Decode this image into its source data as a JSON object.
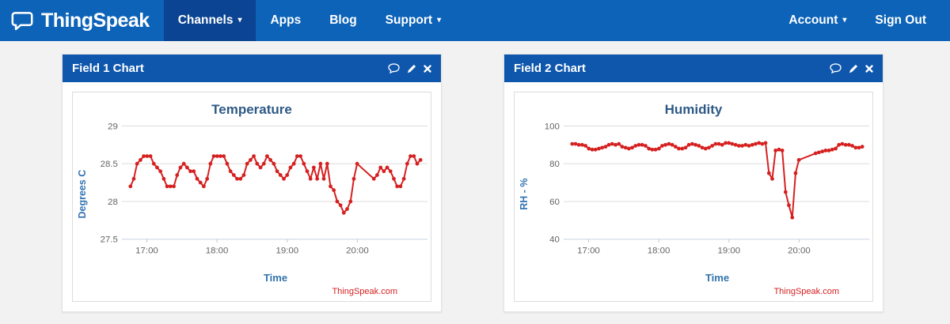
{
  "navbar": {
    "brand": "ThingSpeak",
    "items": [
      {
        "label": "Channels",
        "caret": true,
        "active": true
      },
      {
        "label": "Apps",
        "caret": false,
        "active": false
      },
      {
        "label": "Blog",
        "caret": false,
        "active": false
      },
      {
        "label": "Support",
        "caret": true,
        "active": false
      }
    ],
    "right_items": [
      {
        "label": "Account",
        "caret": true
      },
      {
        "label": "Sign Out",
        "caret": false
      }
    ]
  },
  "icons": {
    "caret_down": "▾",
    "panel_tools": [
      "comment-icon",
      "edit-pencil-icon",
      "close-icon"
    ]
  },
  "panels": [
    {
      "header": "Field 1 Chart"
    },
    {
      "header": "Field 2 Chart"
    }
  ],
  "colors": {
    "navbar_bg": "#0d63b8",
    "navbar_active_bg": "#0a4492",
    "panel_header_bg": "#0f57ad",
    "series_red": "#d62020",
    "title_blue": "#2d5986",
    "axis_label_blue": "#3474b4",
    "tick_gray": "#636363",
    "gridline": "#dcdcdc"
  },
  "chart_data": [
    {
      "type": "line",
      "title": "Temperature",
      "xlabel": "Time",
      "ylabel": "Degrees C",
      "watermark": "ThingSpeak.com",
      "line_color": "#d62020",
      "marker": "circle",
      "grid": true,
      "legend": false,
      "ylim": [
        27.5,
        29
      ],
      "y_ticks": [
        {
          "v": 29,
          "label": "29"
        },
        {
          "v": 28.5,
          "label": "28.5"
        },
        {
          "v": 28,
          "label": "28"
        },
        {
          "v": 27.5,
          "label": "27.5"
        }
      ],
      "xlim": [
        1004,
        1260
      ],
      "x_ticks": [
        {
          "t": 1020,
          "label": "17:00"
        },
        {
          "t": 1080,
          "label": "18:00"
        },
        {
          "t": 1140,
          "label": "19:00"
        },
        {
          "t": 1200,
          "label": "20:00"
        }
      ],
      "x_start_min": 1006,
      "x_step_min": 2.85,
      "values": [
        28.2,
        28.3,
        28.5,
        28.55,
        28.6,
        28.6,
        28.6,
        28.5,
        28.45,
        28.4,
        28.3,
        28.2,
        28.2,
        28.2,
        28.35,
        28.45,
        28.5,
        28.45,
        28.4,
        28.4,
        28.3,
        28.25,
        28.2,
        28.3,
        28.5,
        28.6,
        28.6,
        28.6,
        28.6,
        28.5,
        28.4,
        28.35,
        28.3,
        28.3,
        28.35,
        28.5,
        28.55,
        28.6,
        28.5,
        28.45,
        28.5,
        28.6,
        28.55,
        28.5,
        28.4,
        28.35,
        28.3,
        28.35,
        28.45,
        28.5,
        28.6,
        28.6,
        28.5,
        28.4,
        28.3,
        28.45,
        28.3,
        28.5,
        28.3,
        28.5,
        28.2,
        28.15,
        28.0,
        27.95,
        27.85,
        27.9,
        28.0,
        28.3,
        28.5,
        null,
        null,
        null,
        null,
        28.3,
        28.35,
        28.45,
        28.4,
        28.45,
        28.4,
        28.3,
        28.2,
        28.2,
        28.3,
        28.5,
        28.6,
        28.6,
        28.5,
        28.55
      ]
    },
    {
      "type": "line",
      "title": "Humidity",
      "xlabel": "Time",
      "ylabel": "RH - %",
      "watermark": "ThingSpeak.com",
      "line_color": "#d62020",
      "marker": "circle",
      "grid": true,
      "legend": false,
      "ylim": [
        40,
        100
      ],
      "y_ticks": [
        {
          "v": 100,
          "label": "100"
        },
        {
          "v": 80,
          "label": "80"
        },
        {
          "v": 60,
          "label": "60"
        },
        {
          "v": 40,
          "label": "40"
        }
      ],
      "xlim": [
        1004,
        1260
      ],
      "x_ticks": [
        {
          "t": 1020,
          "label": "17:00"
        },
        {
          "t": 1080,
          "label": "18:00"
        },
        {
          "t": 1140,
          "label": "19:00"
        },
        {
          "t": 1200,
          "label": "20:00"
        }
      ],
      "x_start_min": 1006,
      "x_step_min": 2.85,
      "values": [
        90.5,
        90.5,
        90,
        90,
        89.5,
        88,
        87.5,
        87.5,
        88,
        88.5,
        89,
        90,
        90.5,
        90,
        90.5,
        89,
        88.5,
        88,
        88.5,
        89.5,
        90,
        90,
        89.5,
        88,
        87.5,
        87.5,
        88,
        89.5,
        90,
        90.5,
        90,
        89,
        88,
        88,
        88.5,
        90,
        90.5,
        90,
        89.5,
        88.5,
        88,
        88.5,
        89.5,
        90.5,
        90.5,
        90,
        91,
        91,
        90.5,
        90,
        89.5,
        89.5,
        90,
        89.5,
        90,
        90.5,
        91,
        90.5,
        91,
        75,
        72,
        87,
        87.5,
        87,
        65,
        58,
        51.5,
        75,
        82,
        null,
        null,
        null,
        null,
        85.5,
        86,
        86.5,
        87,
        87,
        87.5,
        88,
        90,
        90.5,
        90,
        90,
        89.5,
        88.5,
        88.5,
        89
      ]
    }
  ]
}
